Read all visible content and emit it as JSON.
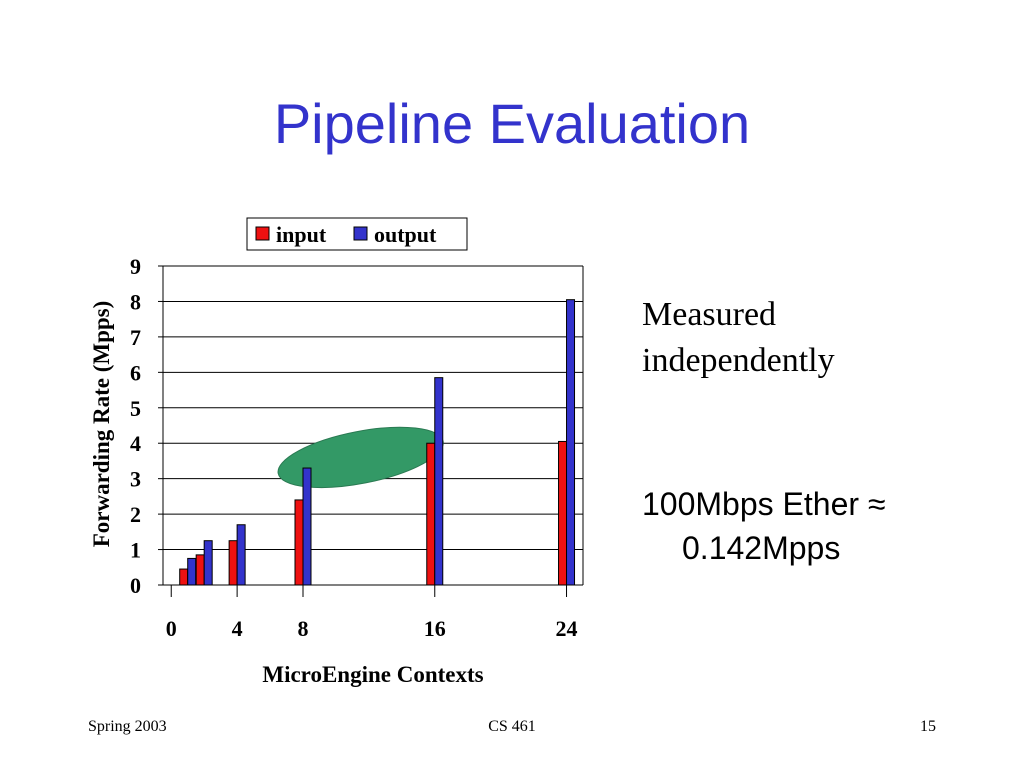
{
  "slide": {
    "title": "Pipeline Evaluation",
    "note_lines": [
      "Measured",
      "independently"
    ],
    "conversion_line1": "100Mbps Ether ≈",
    "conversion_line2": "0.142Mpps",
    "footer_left": "Spring 2003",
    "footer_center": "CS 461",
    "footer_right": "15"
  },
  "chart_data": {
    "type": "bar",
    "xlabel": "MicroEngine Contexts",
    "ylabel": "Forwarding Rate (Mpps)",
    "ylim": [
      0,
      9
    ],
    "yticks": [
      0,
      1,
      2,
      3,
      4,
      5,
      6,
      7,
      8,
      9
    ],
    "xticks": [
      0,
      4,
      8,
      16,
      24
    ],
    "xlim": [
      -0.5,
      25
    ],
    "grid": true,
    "legend_placement": "top",
    "colors": {
      "input": "#ee1111",
      "output": "#3333cc",
      "highlight": "#339966"
    },
    "series": [
      {
        "name": "input",
        "points": [
          {
            "x": 1,
            "y": 0.45
          },
          {
            "x": 2,
            "y": 0.85
          },
          {
            "x": 4,
            "y": 1.25
          },
          {
            "x": 8,
            "y": 2.4
          },
          {
            "x": 16,
            "y": 4.0
          },
          {
            "x": 24,
            "y": 4.05
          }
        ]
      },
      {
        "name": "output",
        "points": [
          {
            "x": 1,
            "y": 0.75
          },
          {
            "x": 2,
            "y": 1.25
          },
          {
            "x": 4,
            "y": 1.7
          },
          {
            "x": 8,
            "y": 3.3
          },
          {
            "x": 16,
            "y": 5.85
          },
          {
            "x": 24,
            "y": 8.05
          }
        ]
      }
    ],
    "annotation": {
      "type": "ellipse",
      "x_center": 11.5,
      "y_center": 3.6
    }
  }
}
